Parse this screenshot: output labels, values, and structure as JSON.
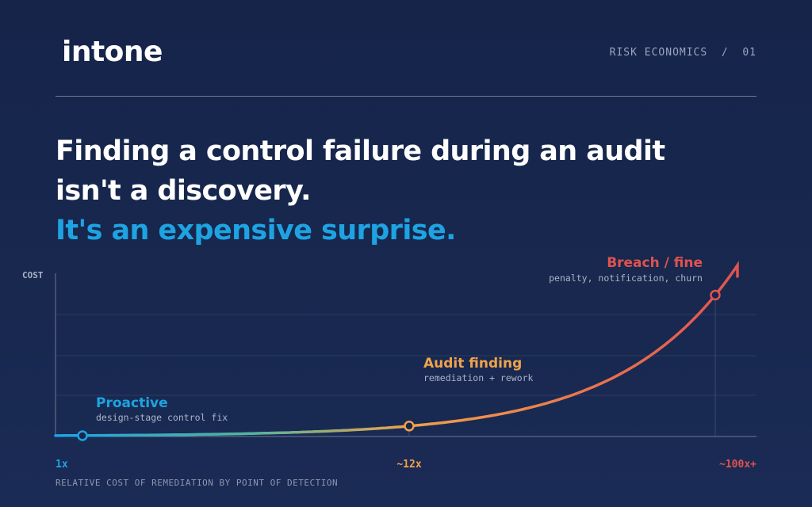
{
  "brand": {
    "logo_text": "intone",
    "section": "RISK ECONOMICS  /  01"
  },
  "headline": {
    "line1": "Finding a control failure during an audit",
    "line2": "isn't a discovery.",
    "accent": "It's an expensive surprise."
  },
  "colors": {
    "background": "#17264a",
    "accent_blue": "#1ea3e2",
    "amber": "#f0a24a",
    "red": "#e0534f"
  },
  "chart_data": {
    "type": "line",
    "ylabel": "COST",
    "xlabel": "RELATIVE COST OF REMEDIATION BY POINT OF DETECTION",
    "tick_labels": [
      "1x",
      "~12x",
      "~100x+"
    ],
    "curve": "exponential",
    "stages": [
      {
        "name": "Proactive",
        "detail": "design-stage control fix",
        "multiplier": 1,
        "tick": "1x",
        "color": "#1ea3e2"
      },
      {
        "name": "Audit finding",
        "detail": "remediation + rework",
        "multiplier": 12,
        "tick": "~12x",
        "color": "#f0a24a"
      },
      {
        "name": "Breach / fine",
        "detail": "penalty, notification, churn",
        "multiplier": 100,
        "tick": "~100x+",
        "color": "#e0534f"
      }
    ],
    "grid": true
  }
}
